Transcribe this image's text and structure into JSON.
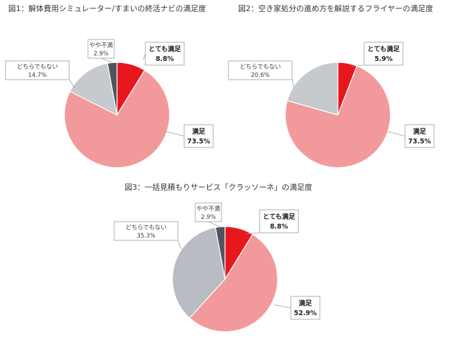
{
  "chart_data": [
    {
      "type": "pie",
      "title": "図1：解体費用シミュレーター/すまいの終活ナビの満足度",
      "slices": [
        {
          "name": "とても満足",
          "pct_label": "8.8%",
          "value": 8.8,
          "color": "#e8171e",
          "bold": true
        },
        {
          "name": "満足",
          "pct_label": "73.5%",
          "value": 73.5,
          "color": "#f29a9b",
          "bold": true
        },
        {
          "name": "どちらでもない",
          "pct_label": "14.7%",
          "value": 14.7,
          "color": "#c6c9ce",
          "bold": false
        },
        {
          "name": "やや不満",
          "pct_label": "2.9%",
          "value": 2.9,
          "color": "#4e5560",
          "bold": false
        }
      ]
    },
    {
      "type": "pie",
      "title": "図2：空き家処分の進め方を解説するフライヤーの満足度",
      "slices": [
        {
          "name": "とても満足",
          "pct_label": "5.9%",
          "value": 5.9,
          "color": "#e8171e",
          "bold": true
        },
        {
          "name": "満足",
          "pct_label": "73.5%",
          "value": 73.5,
          "color": "#f29a9b",
          "bold": true
        },
        {
          "name": "どちらでもない",
          "pct_label": "20.6%",
          "value": 20.6,
          "color": "#c6c9ce",
          "bold": false
        }
      ]
    },
    {
      "type": "pie",
      "title": "図3：一括見積もりサービス「クラッソーネ」の満足度",
      "slices": [
        {
          "name": "とても満足",
          "pct_label": "8.8%",
          "value": 8.8,
          "color": "#e8171e",
          "bold": true
        },
        {
          "name": "満足",
          "pct_label": "52.9%",
          "value": 52.9,
          "color": "#f29a9b",
          "bold": true
        },
        {
          "name": "どちらでもない",
          "pct_label": "35.3%",
          "value": 35.3,
          "color": "#b9bcc3",
          "bold": false
        },
        {
          "name": "やや不満",
          "pct_label": "2.9%",
          "value": 2.9,
          "color": "#4e5560",
          "bold": false
        }
      ]
    }
  ]
}
